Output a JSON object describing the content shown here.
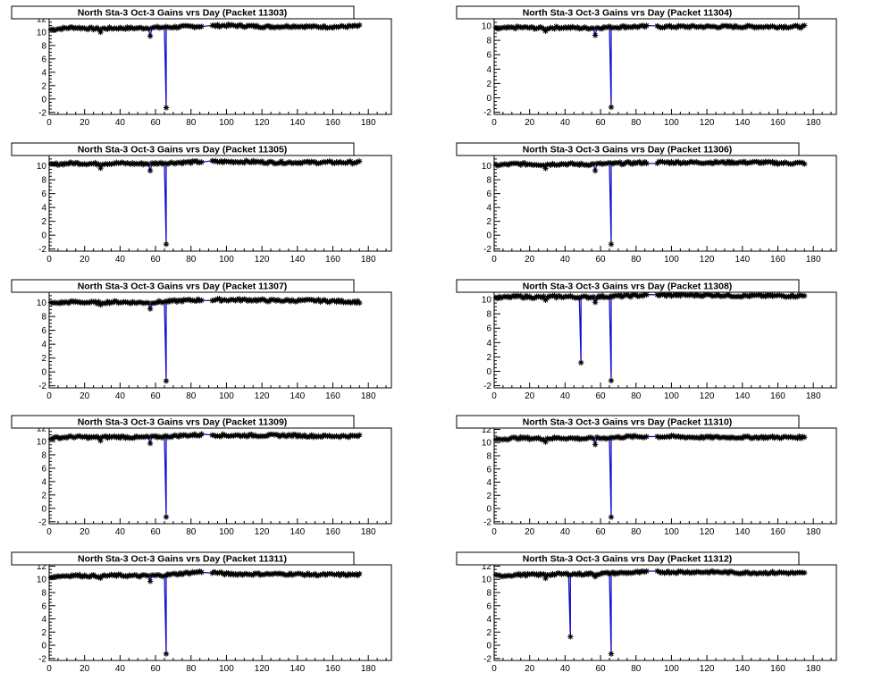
{
  "chart_data": [
    {
      "type": "line",
      "title": "North Sta-3 Oct-3 Gains vrs Day (Packet 11303)",
      "xlabel": "",
      "ylabel": "",
      "xlim": [
        0,
        193
      ],
      "ylim": [
        -2.3,
        12
      ],
      "xticks": [
        "0",
        "20",
        "40",
        "60",
        "80",
        "100",
        "120",
        "140",
        "160",
        "180"
      ],
      "yticks": [
        "-2",
        "0",
        "2",
        "4",
        "6",
        "8",
        "10",
        "12"
      ],
      "baseline": 10.6,
      "y_at_day57": 9.4,
      "dips": [
        {
          "x": 66,
          "y": -1.3
        }
      ],
      "x_range": [
        1,
        175
      ],
      "series": [
        {
          "values": [
            10.4,
            10.7,
            10.5,
            10.6,
            10.6,
            10.7,
            10.8,
            10.9,
            11.0,
            10.9,
            10.8,
            10.9,
            10.8,
            10.8,
            10.9
          ]
        }
      ]
    },
    {
      "type": "line",
      "title": "North Sta-3 Oct-3 Gains vrs Day (Packet 11304)",
      "xlabel": "",
      "ylabel": "",
      "xlim": [
        0,
        193
      ],
      "ylim": [
        -2.3,
        11
      ],
      "xticks": [
        "0",
        "20",
        "40",
        "60",
        "80",
        "100",
        "120",
        "140",
        "160",
        "180"
      ],
      "yticks": [
        "-2",
        "0",
        "2",
        "4",
        "6",
        "8",
        "10"
      ],
      "baseline": 9.8,
      "y_at_day57": 8.7,
      "dips": [
        {
          "x": 66,
          "y": -1.3
        }
      ],
      "x_range": [
        1,
        175
      ],
      "series": [
        {
          "values": [
            9.6,
            9.8,
            9.7,
            9.8,
            9.7,
            9.8,
            9.9,
            9.9,
            9.9,
            9.9,
            9.9,
            9.9,
            9.9,
            9.9,
            9.9
          ]
        }
      ]
    },
    {
      "type": "line",
      "title": "North Sta-3 Oct-3 Gains vrs Day (Packet 11305)",
      "xlabel": "",
      "ylabel": "",
      "xlim": [
        0,
        193
      ],
      "ylim": [
        -2.3,
        11.5
      ],
      "xticks": [
        "0",
        "20",
        "40",
        "60",
        "80",
        "100",
        "120",
        "140",
        "160",
        "180"
      ],
      "yticks": [
        "-2",
        "0",
        "2",
        "4",
        "6",
        "8",
        "10"
      ],
      "baseline": 10.3,
      "y_at_day57": 9.3,
      "dips": [
        {
          "x": 66,
          "y": -1.3
        }
      ],
      "x_range": [
        1,
        175
      ],
      "series": [
        {
          "values": [
            10.2,
            10.4,
            10.3,
            10.4,
            10.3,
            10.4,
            10.5,
            10.6,
            10.6,
            10.6,
            10.5,
            10.5,
            10.5,
            10.5,
            10.5
          ]
        }
      ]
    },
    {
      "type": "line",
      "title": "North Sta-3 Oct-3 Gains vrs Day (Packet 11306)",
      "xlabel": "",
      "ylabel": "",
      "xlim": [
        0,
        193
      ],
      "ylim": [
        -2.3,
        11.5
      ],
      "xticks": [
        "0",
        "20",
        "40",
        "60",
        "80",
        "100",
        "120",
        "140",
        "160",
        "180"
      ],
      "yticks": [
        "-2",
        "0",
        "2",
        "4",
        "6",
        "8",
        "10"
      ],
      "baseline": 10.2,
      "y_at_day57": 9.3,
      "dips": [
        {
          "x": 66,
          "y": -1.3
        }
      ],
      "x_range": [
        1,
        175
      ],
      "series": [
        {
          "values": [
            10.1,
            10.3,
            10.2,
            10.3,
            10.2,
            10.3,
            10.4,
            10.5,
            10.5,
            10.5,
            10.5,
            10.5,
            10.5,
            10.4,
            10.4
          ]
        }
      ]
    },
    {
      "type": "line",
      "title": "North Sta-3 Oct-3 Gains vrs Day (Packet 11307)",
      "xlabel": "",
      "ylabel": "",
      "xlim": [
        0,
        193
      ],
      "ylim": [
        -2.3,
        11.5
      ],
      "xticks": [
        "0",
        "20",
        "40",
        "60",
        "80",
        "100",
        "120",
        "140",
        "160",
        "180"
      ],
      "yticks": [
        "-2",
        "0",
        "2",
        "4",
        "6",
        "8",
        "10"
      ],
      "baseline": 10.0,
      "y_at_day57": 9.1,
      "dips": [
        {
          "x": 66,
          "y": -1.3
        }
      ],
      "x_range": [
        1,
        175
      ],
      "series": [
        {
          "values": [
            9.9,
            10.1,
            10.0,
            10.1,
            10.0,
            10.1,
            10.3,
            10.4,
            10.4,
            10.4,
            10.3,
            10.3,
            10.3,
            10.2,
            10.1
          ]
        }
      ]
    },
    {
      "type": "line",
      "title": "North Sta-3 Oct-3 Gains vrs Day (Packet 11308)",
      "xlabel": "",
      "ylabel": "",
      "xlim": [
        0,
        193
      ],
      "ylim": [
        -2.3,
        11
      ],
      "xticks": [
        "0",
        "20",
        "40",
        "60",
        "80",
        "100",
        "120",
        "140",
        "160",
        "180"
      ],
      "yticks": [
        "-2",
        "0",
        "2",
        "4",
        "6",
        "8",
        "10"
      ],
      "baseline": 10.3,
      "y_at_day57": 9.6,
      "dips": [
        {
          "x": 49,
          "y": 1.2
        },
        {
          "x": 66,
          "y": -1.3
        }
      ],
      "x_range": [
        1,
        175
      ],
      "series": [
        {
          "values": [
            10.2,
            10.4,
            10.3,
            10.4,
            10.3,
            10.4,
            10.5,
            10.6,
            10.6,
            10.6,
            10.6,
            10.5,
            10.5,
            10.5,
            10.5
          ]
        }
      ]
    },
    {
      "type": "line",
      "title": "North Sta-3 Oct-3 Gains vrs Day (Packet 11309)",
      "xlabel": "",
      "ylabel": "",
      "xlim": [
        0,
        193
      ],
      "ylim": [
        -2.3,
        12
      ],
      "xticks": [
        "0",
        "20",
        "40",
        "60",
        "80",
        "100",
        "120",
        "140",
        "160",
        "180"
      ],
      "yticks": [
        "-2",
        "0",
        "2",
        "4",
        "6",
        "8",
        "10",
        "12"
      ],
      "baseline": 10.6,
      "y_at_day57": 9.7,
      "dips": [
        {
          "x": 66,
          "y": -1.3
        }
      ],
      "x_range": [
        1,
        175
      ],
      "series": [
        {
          "values": [
            10.5,
            10.7,
            10.6,
            10.7,
            10.6,
            10.7,
            10.9,
            11.0,
            10.9,
            10.9,
            10.9,
            10.9,
            10.8,
            10.8,
            10.8
          ]
        }
      ]
    },
    {
      "type": "line",
      "title": "North Sta-3 Oct-3 Gains vrs Day (Packet 11310)",
      "xlabel": "",
      "ylabel": "",
      "xlim": [
        0,
        193
      ],
      "ylim": [
        -2.3,
        12.2
      ],
      "xticks": [
        "0",
        "20",
        "40",
        "60",
        "80",
        "100",
        "120",
        "140",
        "160",
        "180"
      ],
      "yticks": [
        "-2",
        "0",
        "2",
        "4",
        "6",
        "8",
        "10",
        "12"
      ],
      "baseline": 10.6,
      "y_at_day57": 9.7,
      "dips": [
        {
          "x": 66,
          "y": -1.3
        }
      ],
      "x_range": [
        1,
        175
      ],
      "series": [
        {
          "values": [
            10.5,
            10.7,
            10.6,
            10.7,
            10.6,
            10.7,
            10.9,
            10.9,
            10.9,
            10.8,
            10.8,
            10.8,
            10.8,
            10.8,
            10.8
          ]
        }
      ]
    },
    {
      "type": "line",
      "title": "North Sta-3 Oct-3 Gains vrs Day (Packet 11311)",
      "xlabel": "",
      "ylabel": "",
      "xlim": [
        0,
        193
      ],
      "ylim": [
        -2.3,
        12.2
      ],
      "xticks": [
        "0",
        "20",
        "40",
        "60",
        "80",
        "100",
        "120",
        "140",
        "160",
        "180"
      ],
      "yticks": [
        "-2",
        "0",
        "2",
        "4",
        "6",
        "8",
        "10",
        "12"
      ],
      "baseline": 10.5,
      "y_at_day57": 9.7,
      "dips": [
        {
          "x": 66,
          "y": -1.3
        }
      ],
      "x_range": [
        1,
        175
      ],
      "series": [
        {
          "values": [
            10.4,
            10.6,
            10.5,
            10.6,
            10.5,
            10.6,
            10.9,
            11.2,
            10.8,
            10.8,
            10.8,
            10.8,
            10.7,
            10.7,
            10.7
          ]
        }
      ]
    },
    {
      "type": "line",
      "title": "North Sta-3 Oct-3 Gains vrs Day (Packet 11312)",
      "xlabel": "",
      "ylabel": "",
      "xlim": [
        0,
        193
      ],
      "ylim": [
        -2.3,
        12.2
      ],
      "xticks": [
        "0",
        "20",
        "40",
        "60",
        "80",
        "100",
        "120",
        "140",
        "160",
        "180"
      ],
      "yticks": [
        "-2",
        "0",
        "2",
        "4",
        "6",
        "8",
        "10",
        "12"
      ],
      "baseline": 10.8,
      "y_at_day57": 10.4,
      "dips": [
        {
          "x": 43,
          "y": 1.3
        },
        {
          "x": 66,
          "y": -1.3
        }
      ],
      "x_range": [
        1,
        175
      ],
      "series": [
        {
          "values": [
            10.5,
            10.7,
            10.7,
            10.8,
            10.8,
            10.9,
            11.0,
            11.1,
            11.1,
            11.1,
            11.1,
            11.0,
            11.0,
            11.0,
            10.9
          ]
        }
      ]
    }
  ],
  "style": {
    "line_color": "#1111cc",
    "marker_color": "#000000",
    "frame_color": "#000000"
  }
}
